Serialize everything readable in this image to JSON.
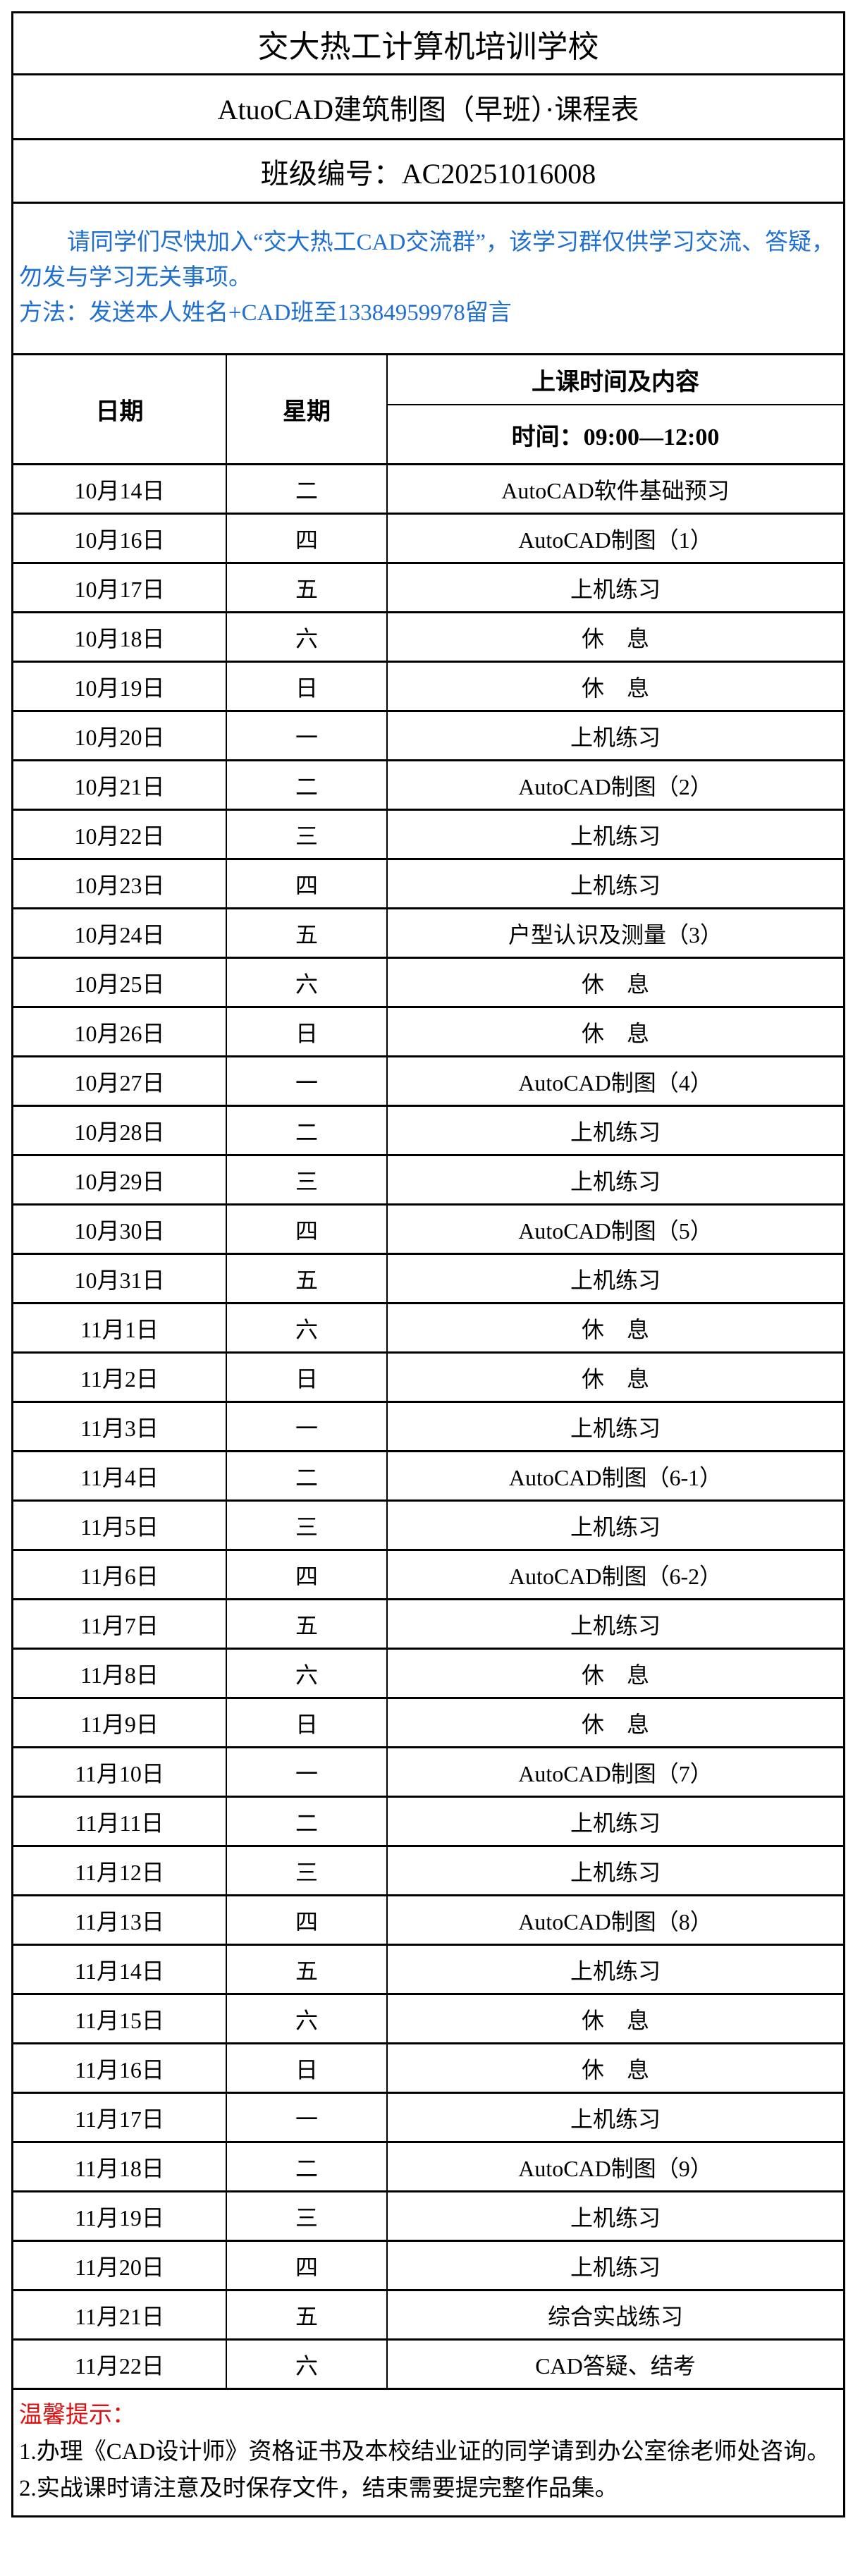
{
  "title": "交大热工计算机培训学校",
  "subtitle": "AtuoCAD建筑制图（早班）·课程表",
  "class_number": "班级编号：AC20251016008",
  "notice": {
    "line1": "请同学们尽快加入“交大热工CAD交流群”，该学习群仅供学习交流、答疑，勿发与学习无关事项。",
    "line2": "方法：发送本人姓名+CAD班至13384959978留言"
  },
  "table": {
    "headers": {
      "date": "日期",
      "weekday": "星期",
      "content": "上课时间及内容",
      "time": "时间：09:00—12:00"
    },
    "rows": [
      [
        "10月14日",
        "二",
        "AutoCAD软件基础预习"
      ],
      [
        "10月16日",
        "四",
        "AutoCAD制图（1）"
      ],
      [
        "10月17日",
        "五",
        "上机练习"
      ],
      [
        "10月18日",
        "六",
        "休　息"
      ],
      [
        "10月19日",
        "日",
        "休　息"
      ],
      [
        "10月20日",
        "一",
        "上机练习"
      ],
      [
        "10月21日",
        "二",
        "AutoCAD制图（2）"
      ],
      [
        "10月22日",
        "三",
        "上机练习"
      ],
      [
        "10月23日",
        "四",
        "上机练习"
      ],
      [
        "10月24日",
        "五",
        "户型认识及测量（3）"
      ],
      [
        "10月25日",
        "六",
        "休　息"
      ],
      [
        "10月26日",
        "日",
        "休　息"
      ],
      [
        "10月27日",
        "一",
        "AutoCAD制图（4）"
      ],
      [
        "10月28日",
        "二",
        "上机练习"
      ],
      [
        "10月29日",
        "三",
        "上机练习"
      ],
      [
        "10月30日",
        "四",
        "AutoCAD制图（5）"
      ],
      [
        "10月31日",
        "五",
        "上机练习"
      ],
      [
        "11月1日",
        "六",
        "休　息"
      ],
      [
        "11月2日",
        "日",
        "休　息"
      ],
      [
        "11月3日",
        "一",
        "上机练习"
      ],
      [
        "11月4日",
        "二",
        "AutoCAD制图（6-1）"
      ],
      [
        "11月5日",
        "三",
        "上机练习"
      ],
      [
        "11月6日",
        "四",
        "AutoCAD制图（6-2）"
      ],
      [
        "11月7日",
        "五",
        "上机练习"
      ],
      [
        "11月8日",
        "六",
        "休　息"
      ],
      [
        "11月9日",
        "日",
        "休　息"
      ],
      [
        "11月10日",
        "一",
        "AutoCAD制图（7）"
      ],
      [
        "11月11日",
        "二",
        "上机练习"
      ],
      [
        "11月12日",
        "三",
        "上机练习"
      ],
      [
        "11月13日",
        "四",
        "AutoCAD制图（8）"
      ],
      [
        "11月14日",
        "五",
        "上机练习"
      ],
      [
        "11月15日",
        "六",
        "休　息"
      ],
      [
        "11月16日",
        "日",
        "休　息"
      ],
      [
        "11月17日",
        "一",
        "上机练习"
      ],
      [
        "11月18日",
        "二",
        "AutoCAD制图（9）"
      ],
      [
        "11月19日",
        "三",
        "上机练习"
      ],
      [
        "11月20日",
        "四",
        "上机练习"
      ],
      [
        "11月21日",
        "五",
        "综合实战练习"
      ],
      [
        "11月22日",
        "六",
        "CAD答疑、结考"
      ]
    ]
  },
  "footer": {
    "tip_label": "温馨提示：",
    "item1": "1.办理《CAD设计师》资格证书及本校结业证的同学请到办公室徐老师处咨询。",
    "item2": "2.实战课时请注意及时保存文件，结束需要提完整作品集。"
  },
  "colors": {
    "notice": "#1f6fd0",
    "tip": "#e01010"
  }
}
